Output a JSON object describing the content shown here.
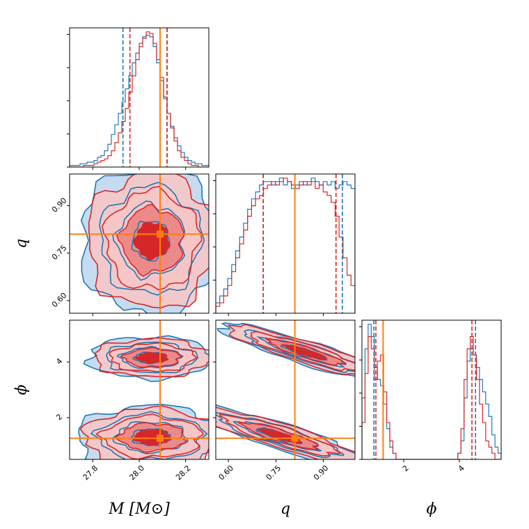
{
  "chart_data": {
    "type": "corner",
    "parameters": [
      {
        "key": "M",
        "label": "M [M⊙]",
        "range": [
          27.7,
          28.3
        ],
        "ticks": [
          "27.8",
          "28.0",
          "28.2"
        ],
        "tick_values": [
          27.8,
          28.0,
          28.2
        ],
        "truth": 28.09,
        "quantiles_blue": [
          27.93,
          28.12
        ],
        "quantiles_red": [
          27.96,
          28.12
        ]
      },
      {
        "key": "q",
        "label": "q",
        "range": [
          0.56,
          1.0
        ],
        "ticks": [
          "0.60",
          "0.75",
          "0.90"
        ],
        "tick_values": [
          0.6,
          0.75,
          0.9
        ],
        "truth": 0.81,
        "quantiles_blue": [
          0.71,
          0.96
        ],
        "quantiles_red": [
          0.71,
          0.94
        ]
      },
      {
        "key": "phi",
        "label": "ϕ",
        "range": [
          0.5,
          5.5
        ],
        "ticks": [
          "2",
          "4"
        ],
        "tick_values": [
          2,
          4
        ],
        "truth": 1.26,
        "quantiles_blue": [
          0.93,
          4.58
        ],
        "quantiles_red": [
          1.0,
          4.45
        ]
      }
    ],
    "series": [
      {
        "color": "#1f77b4"
      },
      {
        "color": "#d62728"
      }
    ],
    "truth_color": "#ff7f0e",
    "histograms": {
      "M": {
        "bins": [
          27.7,
          28.3
        ],
        "blue": [
          1,
          1,
          1,
          2,
          2,
          3,
          3,
          4,
          6,
          7,
          10,
          14,
          20,
          26,
          33,
          40,
          48,
          56,
          64,
          70,
          76,
          80,
          81,
          80,
          74,
          64,
          53,
          42,
          33,
          25,
          18,
          13,
          9,
          6,
          4,
          3,
          2,
          2,
          1,
          1
        ],
        "red": [
          0,
          0,
          0,
          0,
          1,
          1,
          1,
          2,
          3,
          4,
          5,
          7,
          10,
          15,
          21,
          28,
          36,
          46,
          56,
          66,
          74,
          79,
          83,
          82,
          76,
          66,
          55,
          43,
          33,
          24,
          16,
          10,
          6,
          4,
          2,
          1,
          1,
          0,
          0,
          0
        ]
      },
      "q": {
        "bins": [
          0.56,
          1.0
        ],
        "blue": [
          3,
          5,
          7,
          10,
          14,
          18,
          22,
          26,
          30,
          33,
          35,
          37,
          38,
          38,
          37,
          38,
          39,
          37,
          38,
          36,
          37,
          38,
          37,
          38,
          39,
          38,
          37,
          38,
          37,
          38,
          36,
          37,
          38,
          37,
          36
        ],
        "red": [
          2,
          3,
          5,
          8,
          12,
          16,
          20,
          24,
          28,
          31,
          33,
          34,
          36,
          37,
          38,
          37,
          38,
          39,
          38,
          37,
          36,
          37,
          38,
          37,
          38,
          36,
          37,
          35,
          34,
          32,
          28,
          22,
          16,
          11,
          8
        ]
      },
      "phi": {
        "bins": [
          0.5,
          5.5
        ],
        "blue": [
          10,
          18,
          22,
          20,
          15,
          13,
          12,
          9,
          5,
          2,
          1,
          0,
          0,
          0,
          0,
          0,
          0,
          0,
          0,
          0,
          0,
          0,
          0,
          0,
          0,
          0,
          0,
          0,
          0,
          0,
          0,
          1,
          3,
          10,
          16,
          18,
          17,
          15,
          13,
          11,
          9,
          7,
          4,
          2,
          1
        ],
        "red": [
          6,
          14,
          20,
          18,
          13,
          16,
          17,
          11,
          6,
          3,
          1,
          0,
          0,
          0,
          0,
          0,
          0,
          0,
          0,
          0,
          0,
          0,
          0,
          0,
          0,
          0,
          0,
          0,
          0,
          0,
          0,
          1,
          5,
          13,
          18,
          20,
          17,
          13,
          9,
          6,
          3,
          2,
          1,
          0,
          0
        ]
      }
    }
  }
}
